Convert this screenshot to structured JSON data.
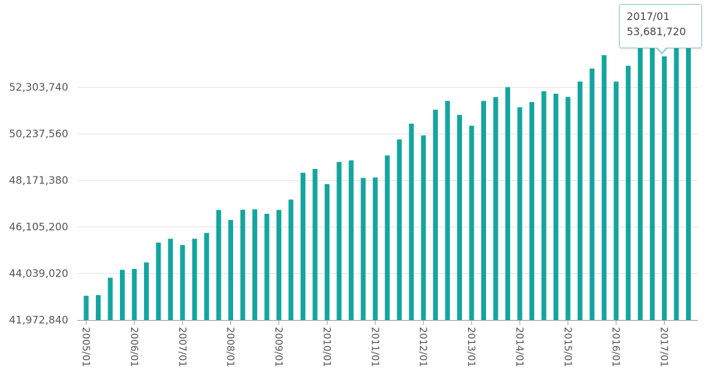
{
  "chart_data": {
    "type": "bar",
    "title": "",
    "xlabel": "",
    "ylabel": "",
    "ylim": [
      41972840,
      55400000
    ],
    "yticks": [
      "41,972,840",
      "44,039,020",
      "46,105,200",
      "48,171,380",
      "50,237,560",
      "52,303,740"
    ],
    "ytick_values": [
      41972840,
      44039020,
      46105200,
      48171380,
      50237560,
      52303740
    ],
    "xtick_labels": [
      "2005/01",
      "2006/01",
      "2007/01",
      "2008/01",
      "2009/01",
      "2010/01",
      "2011/01",
      "2012/01",
      "2013/01",
      "2014/01",
      "2015/01",
      "2016/01",
      "2017/01"
    ],
    "grid": true,
    "bar_color": "#14a59f",
    "categories": [
      "2005/01",
      "2005/04",
      "2005/07",
      "2005/10",
      "2006/01",
      "2006/04",
      "2006/07",
      "2006/10",
      "2007/01",
      "2007/04",
      "2007/07",
      "2007/10",
      "2008/01",
      "2008/04",
      "2008/07",
      "2008/10",
      "2009/01",
      "2009/04",
      "2009/07",
      "2009/10",
      "2010/01",
      "2010/04",
      "2010/07",
      "2010/10",
      "2011/01",
      "2011/04",
      "2011/07",
      "2011/10",
      "2012/01",
      "2012/04",
      "2012/07",
      "2012/10",
      "2013/01",
      "2013/04",
      "2013/07",
      "2013/10",
      "2014/01",
      "2014/04",
      "2014/07",
      "2014/10",
      "2015/01",
      "2015/04",
      "2015/07",
      "2015/10",
      "2016/01",
      "2016/04",
      "2016/07",
      "2016/10",
      "2017/01",
      "2017/04",
      "2017/07"
    ],
    "values": [
      43050000,
      43080000,
      43850000,
      44200000,
      44240000,
      44530000,
      45410000,
      45580000,
      45300000,
      45580000,
      45840000,
      46860000,
      46410000,
      46870000,
      46890000,
      46690000,
      46860000,
      47320000,
      48510000,
      48680000,
      48010000,
      48990000,
      49060000,
      48280000,
      48300000,
      49280000,
      49990000,
      50690000,
      50170000,
      51310000,
      51700000,
      51080000,
      50600000,
      51700000,
      51870000,
      52310000,
      51420000,
      51650000,
      52130000,
      52020000,
      51880000,
      52560000,
      53140000,
      53730000,
      52560000,
      53260000,
      54100000,
      54100000,
      53681720,
      54200000,
      54170000
    ],
    "tooltip": {
      "date": "2017/01",
      "value": "53,681,720"
    }
  }
}
